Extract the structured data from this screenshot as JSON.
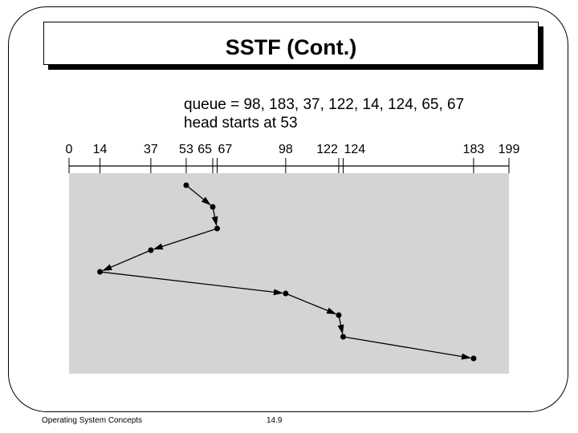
{
  "slide": {
    "title": "SSTF (Cont.)",
    "queue_text": "queue = 98, 183, 37, 122, 14, 124, 65, 67",
    "head_text": "head starts at 53",
    "footer_left": "Operating System Concepts",
    "footer_right": "14.9"
  },
  "diagram": {
    "axis_min": 0,
    "axis_max": 199,
    "ticks": [
      0,
      14,
      37,
      53,
      65,
      67,
      98,
      122,
      124,
      183,
      199
    ],
    "head_start": 53,
    "service_order": [
      53,
      65,
      67,
      37,
      14,
      98,
      122,
      124,
      183
    ],
    "colors": {
      "plot_background": "#d4d4d4",
      "line": "#000000"
    }
  }
}
